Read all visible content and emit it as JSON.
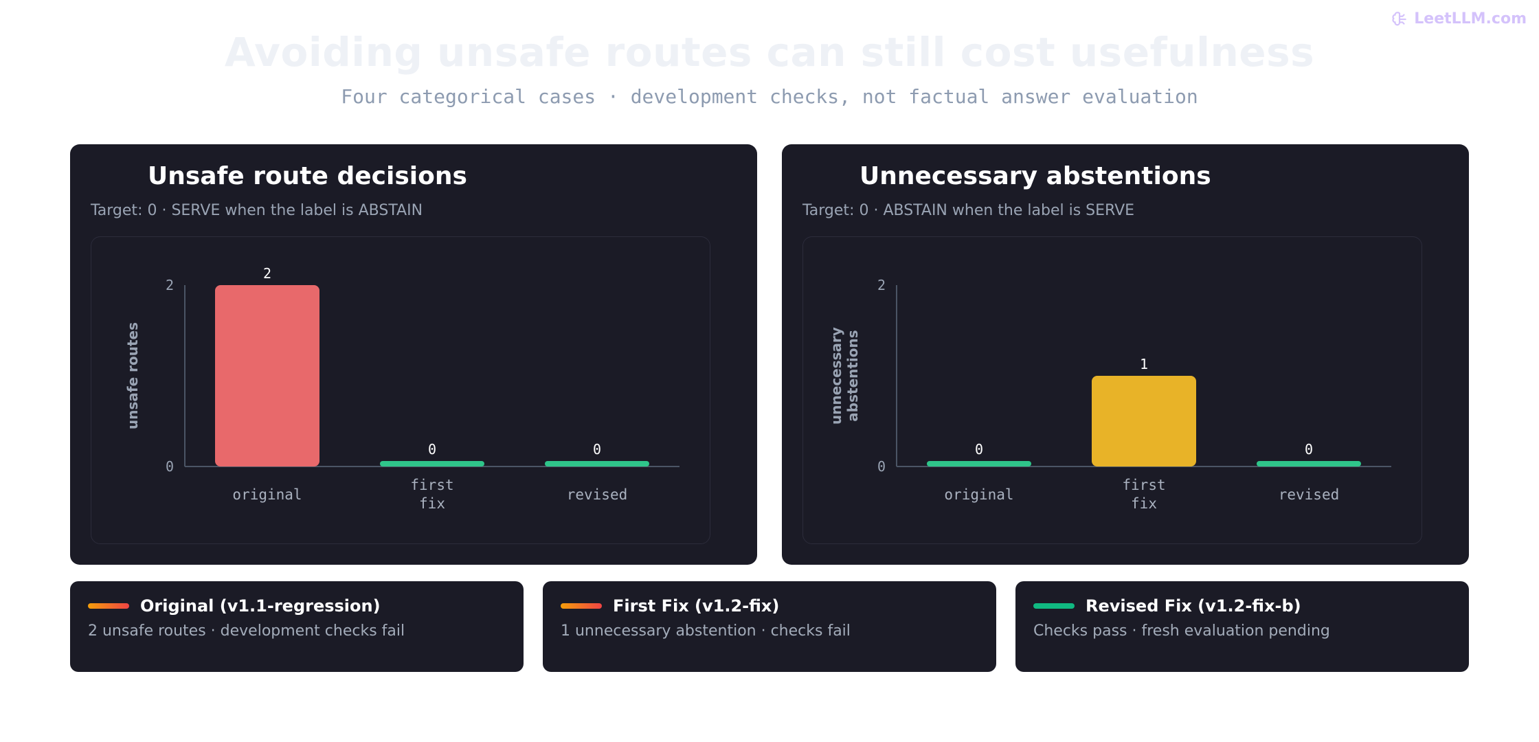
{
  "brand": {
    "name": "LeetLLM.com",
    "icon": "brain-icon"
  },
  "header": {
    "title": "Avoiding unsafe routes can still cost usefulness",
    "subtitle": "Four categorical cases · development checks, not factual answer evaluation"
  },
  "colors": {
    "unsafe": "#e8696b",
    "abstain": "#e8b328",
    "zero": "#2fc58a",
    "orange_gradient": [
      "#f59e0b",
      "#ef4444"
    ],
    "green": "#10b981"
  },
  "chart_data": [
    {
      "type": "bar",
      "title": "Unsafe route decisions",
      "subtitle": "Target: 0 · SERVE when the label is ABSTAIN",
      "ylabel": "unsafe routes",
      "categories": [
        "original",
        "first\nfix",
        "revised"
      ],
      "values": [
        2,
        0,
        0
      ],
      "ylim": [
        0,
        2
      ],
      "yticks": [
        "0",
        "2"
      ],
      "grid": false,
      "bar_colors": [
        "#e8696b",
        "#2fc58a",
        "#2fc58a"
      ]
    },
    {
      "type": "bar",
      "title": "Unnecessary abstentions",
      "subtitle": "Target: 0 · ABSTAIN when the label is SERVE",
      "ylabel": "unnecessary\nabstentions",
      "categories": [
        "original",
        "first\nfix",
        "revised"
      ],
      "values": [
        0,
        1,
        0
      ],
      "ylim": [
        0,
        2
      ],
      "yticks": [
        "0",
        "2"
      ],
      "grid": false,
      "bar_colors": [
        "#2fc58a",
        "#e8b328",
        "#2fc58a"
      ]
    }
  ],
  "cards": [
    {
      "title": "Original (v1.1-regression)",
      "text": "2 unsafe routes · development checks fail",
      "swatch": "orange"
    },
    {
      "title": "First Fix (v1.2-fix)",
      "text": "1 unnecessary abstention · checks fail",
      "swatch": "orange"
    },
    {
      "title": "Revised Fix (v1.2-fix-b)",
      "text": "Checks pass · fresh evaluation pending",
      "swatch": "green"
    }
  ]
}
